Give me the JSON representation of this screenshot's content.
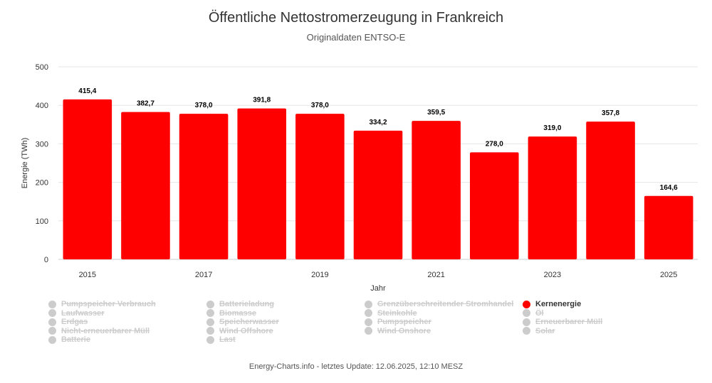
{
  "title": "Öffentliche Nettostromerzeugung in Frankreich",
  "subtitle": "Originaldaten ENTSO-E",
  "footer": "Energy-Charts.info - letztes Update: 12.06.2025, 12:10 MESZ",
  "chart_data": {
    "type": "bar",
    "title": "Öffentliche Nettostromerzeugung in Frankreich",
    "subtitle": "Originaldaten ENTSO-E",
    "xlabel": "Jahr",
    "ylabel": "Energie (TWh)",
    "ylim": [
      0,
      500
    ],
    "yticks": [
      0,
      100,
      200,
      300,
      400,
      500
    ],
    "grid": true,
    "categories": [
      "2015",
      "2016",
      "2017",
      "2018",
      "2019",
      "2020",
      "2021",
      "2022",
      "2023",
      "2024",
      "2025"
    ],
    "xtick_labels": [
      "2015",
      "2017",
      "2019",
      "2021",
      "2023",
      "2025"
    ],
    "series": [
      {
        "name": "Kernenergie",
        "color": "#ff0000",
        "values": [
          415.4,
          382.7,
          378.0,
          391.8,
          378.0,
          334.2,
          359.5,
          278.0,
          319.0,
          357.8,
          164.6
        ],
        "labels": [
          "415,4",
          "382,7",
          "378,0",
          "391,8",
          "378,0",
          "334,2",
          "359,5",
          "278,0",
          "319,0",
          "357,8",
          "164,6"
        ]
      }
    ],
    "legend_placement": "bottom",
    "legend": [
      {
        "name": "Pumpspeicher Verbrauch",
        "active": false
      },
      {
        "name": "Batterieladung",
        "active": false
      },
      {
        "name": "Grenzüberschreitender Stromhandel",
        "active": false
      },
      {
        "name": "Kernenergie",
        "active": true
      },
      {
        "name": "Laufwasser",
        "active": false
      },
      {
        "name": "Biomasse",
        "active": false
      },
      {
        "name": "Steinkohle",
        "active": false
      },
      {
        "name": "Öl",
        "active": false
      },
      {
        "name": "Erdgas",
        "active": false
      },
      {
        "name": "Speicherwasser",
        "active": false
      },
      {
        "name": "Pumpspeicher",
        "active": false
      },
      {
        "name": "Erneuerbarer Müll",
        "active": false
      },
      {
        "name": "Nicht-erneuerbarer Müll",
        "active": false
      },
      {
        "name": "Wind Offshore",
        "active": false
      },
      {
        "name": "Wind Onshore",
        "active": false
      },
      {
        "name": "Solar",
        "active": false
      },
      {
        "name": "Batterie",
        "active": false
      },
      {
        "name": "Last",
        "active": false
      }
    ]
  }
}
